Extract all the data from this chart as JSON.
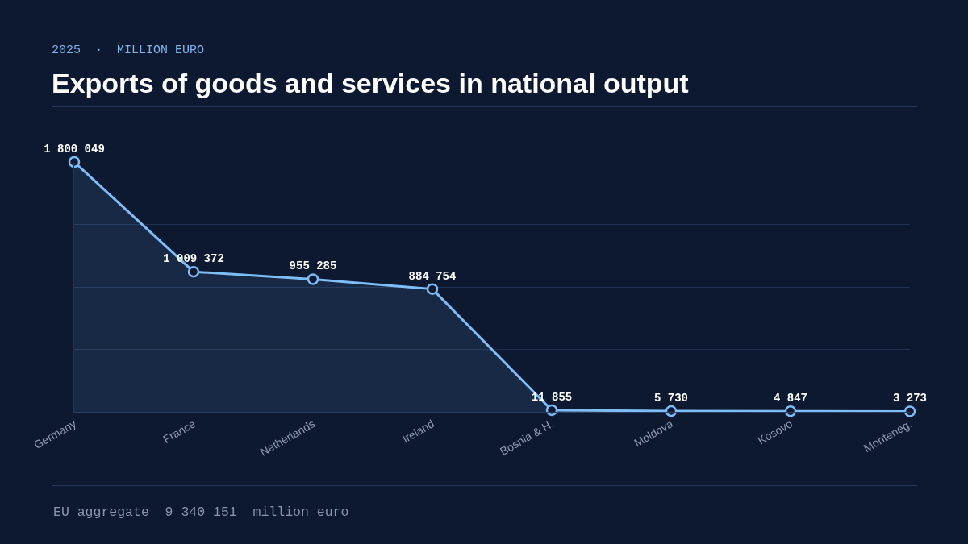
{
  "chart_data": {
    "type": "area",
    "title": "Exports of goods and services in national output",
    "subtitle": "2025  ·  MILLION EURO",
    "annotations": [
      "EU aggregate  9 340 151  million euro"
    ],
    "categories": [
      "Germany",
      "France",
      "Netherlands",
      "Ireland",
      "Bosnia & H.",
      "Moldova",
      "Kosovo",
      "Monteneg."
    ],
    "series": [
      {
        "color": "#7fbdf7",
        "values": [
          1800049,
          1009372,
          955285,
          884754,
          11855,
          5730,
          4847,
          3273
        ]
      }
    ],
    "ylim": [
      0,
      1800049
    ],
    "yticks": [
      {
        "value": 450000,
        "label": null
      },
      {
        "value": 900000,
        "label": null
      },
      {
        "value": 1350000,
        "label": null
      }
    ],
    "tick_labels": "x",
    "grid": "y",
    "marker": "circle",
    "line_style": "solid",
    "data_labels": true
  }
}
